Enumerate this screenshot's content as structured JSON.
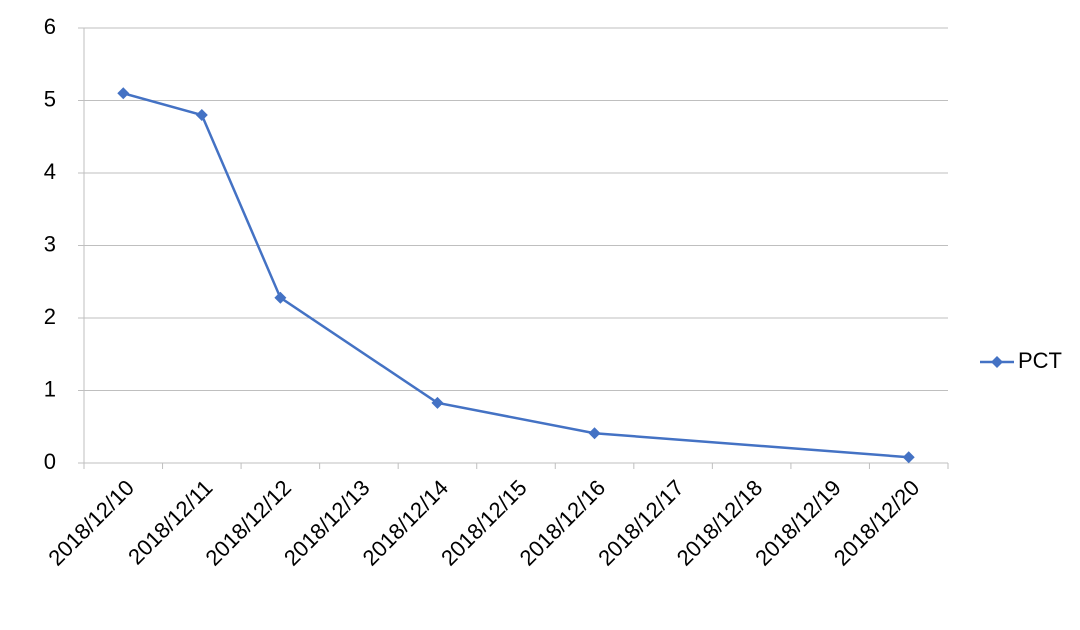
{
  "chart_data": {
    "type": "line",
    "x": [
      "2018/12/10",
      "2018/12/11",
      "2018/12/12",
      "2018/12/14",
      "2018/12/16",
      "2018/12/20"
    ],
    "xticks": [
      "2018/12/10",
      "2018/12/11",
      "2018/12/12",
      "2018/12/13",
      "2018/12/14",
      "2018/12/15",
      "2018/12/16",
      "2018/12/17",
      "2018/12/18",
      "2018/12/19",
      "2018/12/20"
    ],
    "series": [
      {
        "name": "PCT",
        "color": "#4472c4",
        "values": [
          5.1,
          4.8,
          2.28,
          0.83,
          0.41,
          0.08
        ]
      }
    ],
    "ylim": [
      0,
      6
    ],
    "yticks": [
      0,
      1,
      2,
      3,
      4,
      5,
      6
    ],
    "grid": true,
    "legend": "right"
  }
}
